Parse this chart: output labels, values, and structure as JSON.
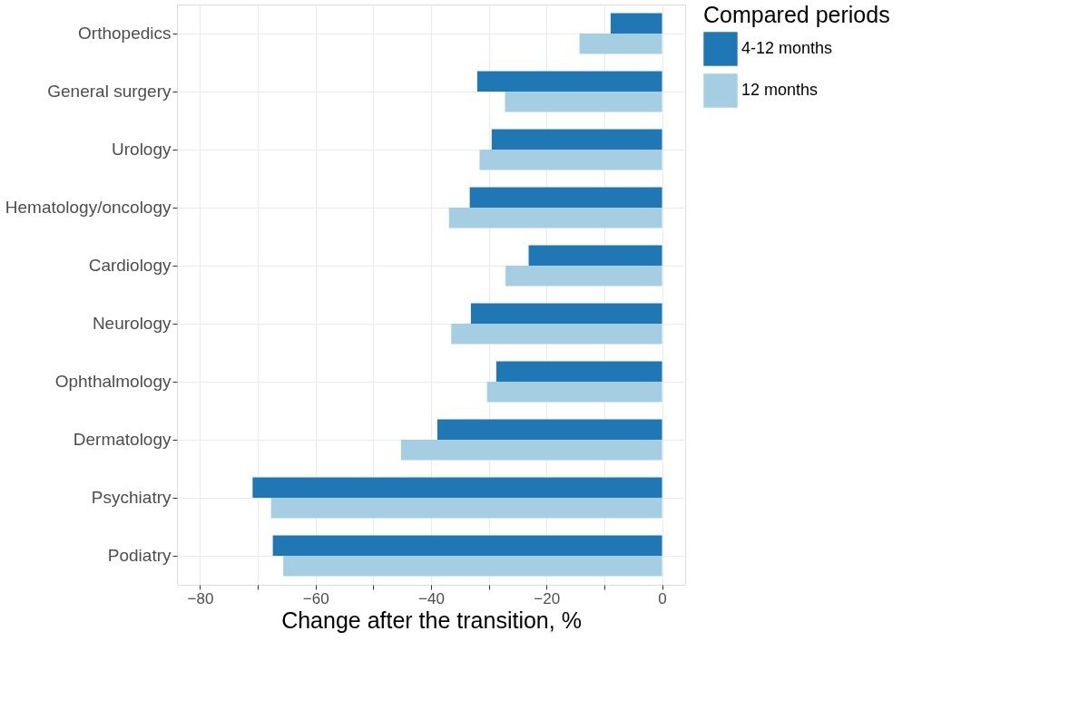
{
  "chart_data": {
    "type": "bar",
    "orientation": "horizontal",
    "xlabel": "Change after the transition, %",
    "legend_title": "Compared periods",
    "legend": "right",
    "grid": true,
    "categories": [
      "Orthopedics",
      "General surgery",
      "Urology",
      "Hematology/oncology",
      "Cardiology",
      "Neurology",
      "Ophthalmology",
      "Dermatology",
      "Psychiatry",
      "Podiatry"
    ],
    "series": [
      {
        "name": "4-12 months",
        "color": "#1f78b4",
        "values": [
          -8.9,
          -32.0,
          -29.5,
          -33.3,
          -23.1,
          -33.1,
          -28.7,
          -38.9,
          -70.9,
          -67.4
        ]
      },
      {
        "name": "12 months",
        "color": "#a6cee3",
        "values": [
          -14.3,
          -27.2,
          -31.6,
          -36.9,
          -27.1,
          -36.5,
          -30.3,
          -45.2,
          -67.7,
          -65.6
        ]
      }
    ],
    "xlim": [
      -84,
      4
    ],
    "xticks": [
      -80,
      {
        "value": -70,
        "label": null
      },
      -60,
      {
        "value": -50,
        "label": null
      },
      -40,
      {
        "value": -30,
        "label": null
      },
      -20,
      {
        "value": -10,
        "label": null
      },
      0
    ]
  }
}
